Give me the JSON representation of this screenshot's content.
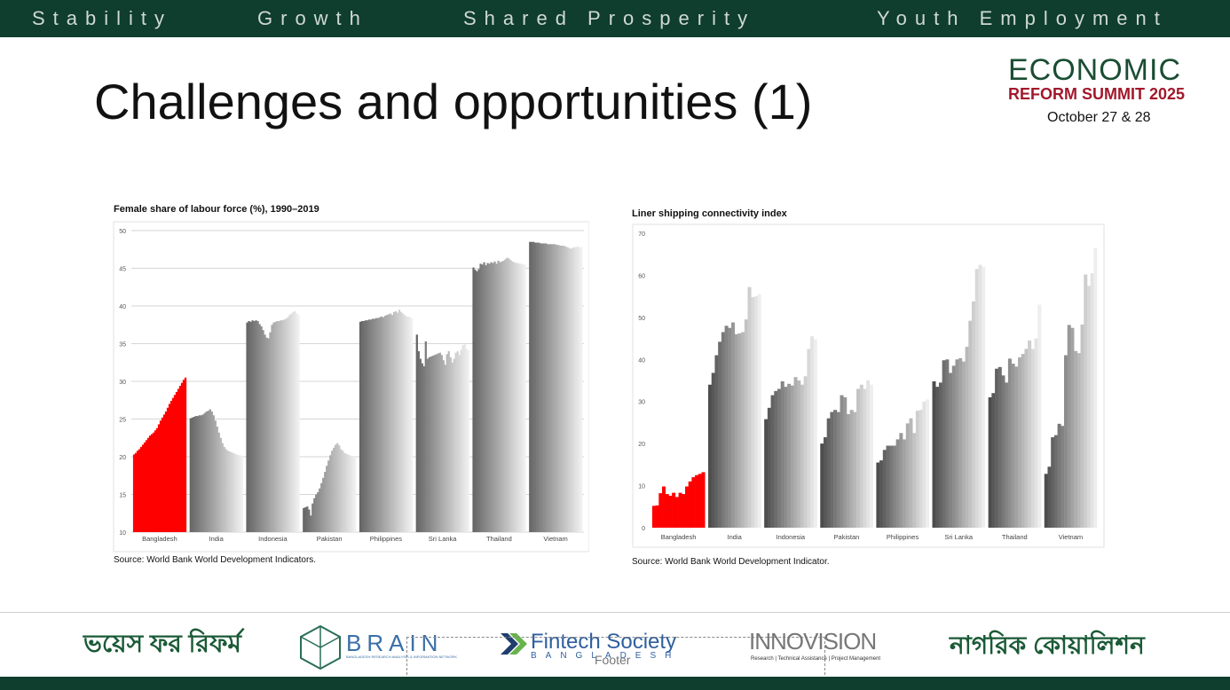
{
  "header": {
    "pillars": [
      "Stability",
      "Growth",
      "Shared Prosperity",
      "Youth Employment"
    ]
  },
  "title": "Challenges and opportunities (1)",
  "event": {
    "line1": "ECONOMIC",
    "line2": "REFORM SUMMIT 2025",
    "dates": "October 27 & 28"
  },
  "chart_data": [
    {
      "type": "bar",
      "title": "Female share of labour force (%), 1990–2019",
      "source": "Source: World Bank World Development Indicators.",
      "categories": [
        "Bangladesh",
        "India",
        "Indonesia",
        "Pakistan",
        "Philippines",
        "Sri Lanka",
        "Thailand",
        "Vietnam"
      ],
      "values": [
        [
          20.3,
          20.5,
          20.8,
          21.0,
          21.3,
          21.6,
          21.9,
          22.2,
          22.5,
          22.8,
          23.0,
          23.2,
          23.5,
          23.8,
          24.3,
          24.8,
          25.2,
          25.6,
          26.0,
          26.5,
          27.0,
          27.4,
          27.8,
          28.2,
          28.6,
          29.0,
          29.4,
          29.8,
          30.2,
          30.5
        ],
        [
          25.1,
          25.2,
          25.3,
          25.4,
          25.4,
          25.5,
          25.5,
          25.6,
          25.8,
          26.0,
          26.1,
          26.3,
          26.0,
          25.5,
          24.8,
          24.0,
          23.2,
          22.5,
          21.8,
          21.3,
          21.0,
          20.8,
          20.7,
          20.6,
          20.5,
          20.4,
          20.3,
          20.2,
          20.2,
          20.1
        ],
        [
          37.8,
          38.0,
          37.9,
          38.1,
          38.0,
          38.1,
          38.0,
          37.6,
          37.3,
          36.8,
          36.2,
          35.8,
          35.7,
          36.5,
          37.5,
          37.8,
          37.9,
          38.0,
          38.0,
          38.1,
          38.1,
          38.2,
          38.3,
          38.5,
          38.8,
          39.0,
          39.2,
          39.3,
          39.0,
          38.8
        ],
        [
          13.2,
          13.3,
          13.4,
          13.0,
          12.2,
          13.8,
          14.5,
          15.0,
          15.3,
          15.8,
          16.5,
          17.2,
          18.0,
          18.8,
          19.5,
          20.2,
          20.8,
          21.2,
          21.6,
          21.8,
          21.5,
          21.0,
          20.8,
          20.5,
          20.4,
          20.3,
          20.2,
          20.1,
          20.0,
          20.0
        ],
        [
          37.9,
          38.0,
          38.0,
          38.1,
          38.1,
          38.2,
          38.2,
          38.3,
          38.3,
          38.4,
          38.4,
          38.5,
          38.6,
          38.5,
          38.7,
          38.8,
          38.9,
          39.0,
          38.8,
          39.2,
          39.3,
          39.1,
          39.5,
          39.2,
          39.0,
          38.8,
          38.6,
          38.6,
          38.5,
          38.4
        ],
        [
          36.2,
          34.0,
          33.0,
          32.4,
          32.0,
          35.3,
          33.0,
          33.2,
          33.3,
          33.4,
          33.5,
          33.6,
          33.7,
          33.8,
          33.5,
          32.8,
          32.2,
          33.6,
          34.0,
          33.2,
          32.5,
          33.0,
          33.8,
          34.0,
          33.5,
          34.2,
          34.8,
          34.9,
          34.3,
          34.1
        ],
        [
          45.1,
          44.8,
          44.6,
          44.9,
          45.6,
          45.5,
          45.8,
          45.4,
          45.7,
          45.6,
          45.8,
          45.7,
          45.9,
          45.6,
          46.0,
          45.8,
          45.9,
          46.0,
          46.2,
          46.4,
          46.3,
          46.1,
          45.9,
          45.8,
          45.7,
          45.7,
          45.6,
          45.6,
          45.5,
          45.5
        ],
        [
          48.5,
          48.5,
          48.5,
          48.4,
          48.4,
          48.4,
          48.3,
          48.3,
          48.3,
          48.3,
          48.2,
          48.2,
          48.2,
          48.2,
          48.2,
          48.1,
          48.1,
          48.0,
          48.0,
          48.0,
          47.9,
          47.8,
          47.7,
          47.6,
          47.7,
          47.8,
          47.8,
          47.9,
          47.8,
          47.8
        ]
      ],
      "highlight": [
        true,
        false,
        false,
        false,
        false,
        false,
        false,
        false
      ],
      "highlight_color": "#ff0000",
      "fade": [
        "#666666",
        "#f0f0f0"
      ],
      "ylim": [
        10,
        50
      ],
      "yticks": [
        10,
        15,
        20,
        25,
        30,
        35,
        40,
        45,
        50
      ],
      "grid": true
    },
    {
      "type": "bar",
      "title": "Liner shipping connectivity index",
      "source": "Source: World Bank World Development Indicator.",
      "categories": [
        "Bangladesh",
        "India",
        "Indonesia",
        "Pakistan",
        "Philippines",
        "Sri Lanka",
        "Thailand",
        "Vietnam"
      ],
      "values": [
        [
          5.2,
          5.3,
          8.2,
          9.8,
          8.0,
          7.6,
          8.3,
          7.3,
          8.3,
          8.0,
          9.8,
          11.0,
          12.0,
          12.5,
          12.8,
          13.2
        ],
        [
          34.0,
          36.8,
          41.0,
          44.2,
          46.5,
          48.0,
          47.5,
          48.8,
          46.0,
          46.2,
          46.5,
          49.5,
          57.2,
          54.8,
          55.0,
          55.5
        ],
        [
          25.8,
          28.5,
          31.5,
          32.5,
          33.0,
          34.8,
          33.5,
          34.2,
          33.8,
          35.8,
          35.0,
          34.0,
          36.0,
          42.5,
          45.5,
          44.8
        ],
        [
          20.0,
          21.5,
          26.0,
          27.5,
          28.0,
          27.5,
          31.5,
          31.0,
          27.0,
          28.0,
          27.5,
          33.0,
          34.0,
          33.0,
          35.0,
          34.0
        ],
        [
          15.5,
          16.0,
          18.5,
          19.5,
          19.5,
          19.5,
          21.0,
          22.5,
          21.0,
          24.8,
          26.0,
          22.5,
          27.8,
          28.0,
          30.0,
          30.5
        ],
        [
          34.8,
          33.5,
          34.5,
          39.8,
          40.0,
          36.8,
          38.5,
          40.0,
          40.3,
          39.5,
          43.0,
          49.2,
          53.8,
          61.5,
          62.5,
          62.0
        ],
        [
          31.0,
          32.0,
          37.8,
          38.2,
          36.2,
          34.5,
          40.2,
          39.0,
          38.3,
          40.5,
          41.3,
          42.5,
          44.5,
          42.5,
          45.0,
          53.0
        ],
        [
          12.8,
          14.5,
          21.5,
          22.0,
          24.7,
          24.2,
          41.0,
          48.2,
          47.5,
          42.0,
          41.5,
          48.3,
          60.2,
          57.5,
          60.5,
          66.5
        ]
      ],
      "highlight": [
        true,
        false,
        false,
        false,
        false,
        false,
        false,
        false
      ],
      "highlight_color": "#ff0000",
      "fade": [
        "#4d4d4d",
        "#eeeeee"
      ],
      "ylim": [
        0,
        70
      ],
      "yticks": [
        0,
        10,
        20,
        30,
        40,
        50,
        60,
        70
      ],
      "grid": false
    }
  ],
  "footer": {
    "placeholder": "Footer",
    "logo1": "ভয়েস ফর রিফর্ম",
    "brain": "BRAIN",
    "brain_tag": "BANGLADESH RESEARCH ANALYSIS & INFORMATION NETWORK",
    "fintech": "Fintech Society",
    "fintech_sub": "BANGLADESH",
    "innovision": "INNOVISION",
    "innovision_tag": "Research | Technical Assistance | Project Management",
    "logo5": "নাগরিক কোয়ালিশন"
  }
}
